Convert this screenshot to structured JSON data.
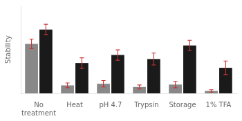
{
  "chart_data": {
    "type": "bar",
    "categories": [
      "No\ntreatment",
      "Heat",
      "pH 4.7",
      "Trypsin",
      "Storage",
      "1% TFA"
    ],
    "series": [
      {
        "color": "#888888",
        "values": [
          0.62,
          0.1,
          0.12,
          0.08,
          0.11,
          0.03
        ],
        "errors": [
          0.06,
          0.03,
          0.04,
          0.025,
          0.04,
          0.015
        ]
      },
      {
        "color": "#1a1a1a",
        "values": [
          0.8,
          0.38,
          0.48,
          0.43,
          0.6,
          0.32
        ],
        "errors": [
          0.065,
          0.065,
          0.065,
          0.075,
          0.065,
          0.085
        ]
      }
    ],
    "error_color": "#cc3333",
    "ylabel": "Stability",
    "ylim": [
      0,
      1.1
    ],
    "grid": false,
    "tick_labels": "x"
  }
}
